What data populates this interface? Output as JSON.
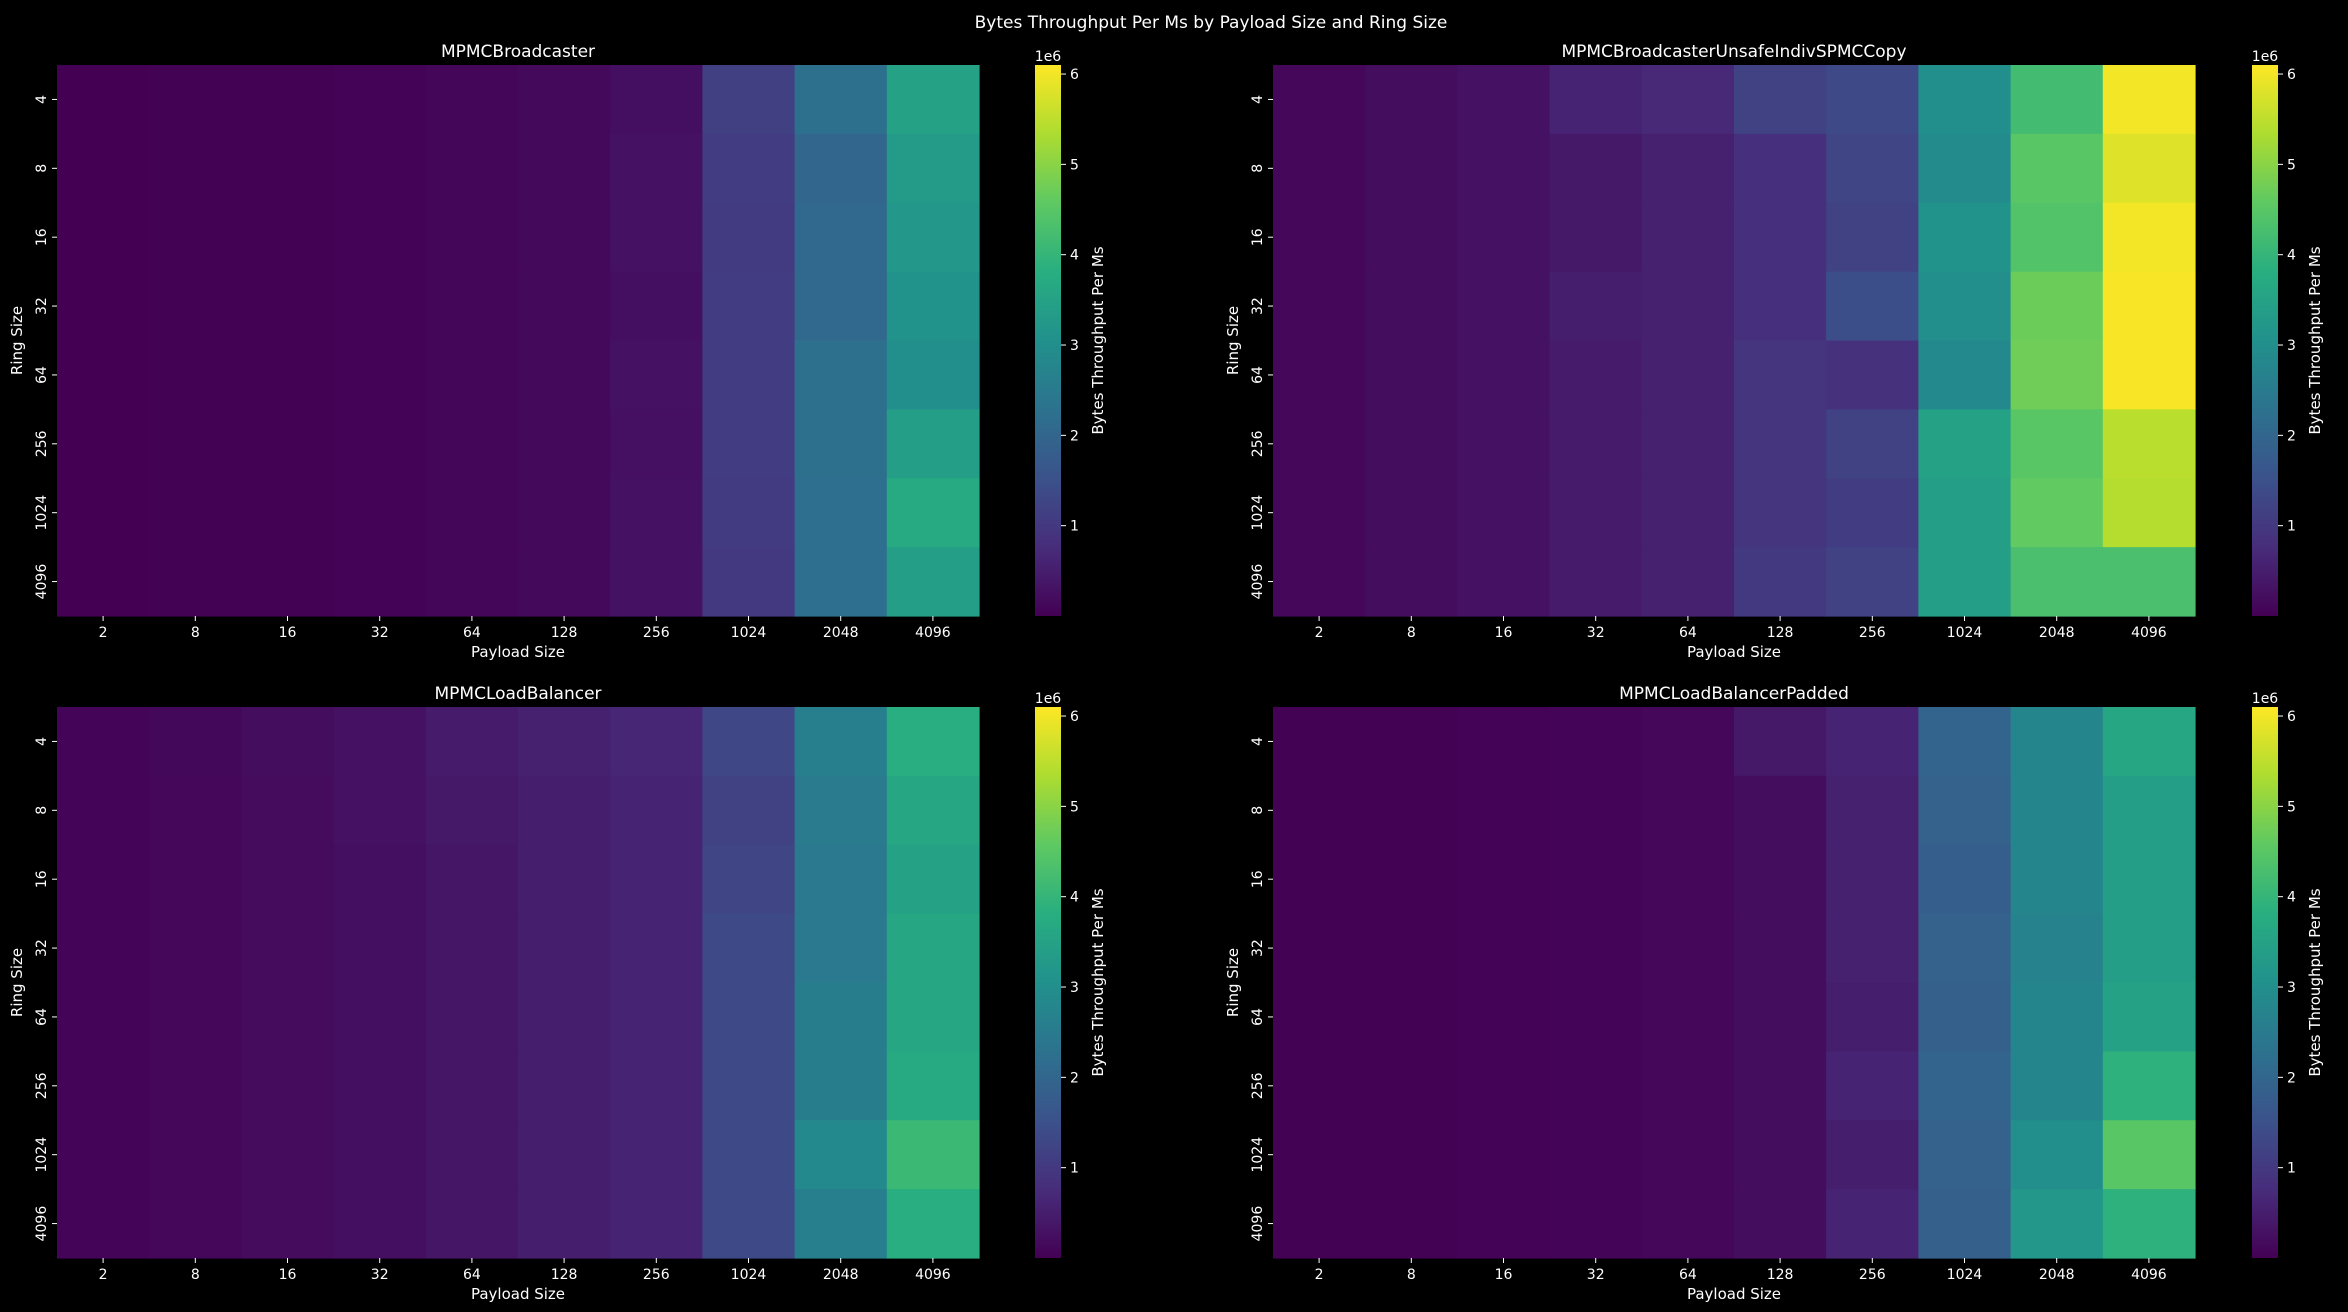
{
  "figure": {
    "suptitle": "Bytes Throughput Per Ms by Payload Size and Ring Size",
    "colormap": "viridis",
    "background": "#000000"
  },
  "chart_data": [
    {
      "type": "heatmap",
      "title": "MPMCBroadcaster",
      "xlabel": "Payload Size",
      "ylabel": "Ring Size",
      "x_categories": [
        "2",
        "8",
        "16",
        "32",
        "64",
        "128",
        "256",
        "1024",
        "2048",
        "4096"
      ],
      "y_categories": [
        "4",
        "8",
        "16",
        "32",
        "64",
        "256",
        "1024",
        "4096"
      ],
      "colorbar": {
        "label": "Bytes Throughput Per Ms",
        "offset_label": "1e6",
        "ticks": [
          "1",
          "2",
          "3",
          "4",
          "5",
          "6"
        ],
        "vmin": 0,
        "vmax": 6.1
      },
      "values": [
        [
          0.003,
          0.01,
          0.02,
          0.04,
          0.08,
          0.13,
          0.25,
          1.15,
          2.25,
          3.5
        ],
        [
          0.003,
          0.01,
          0.02,
          0.04,
          0.08,
          0.13,
          0.3,
          1.1,
          2.0,
          3.3
        ],
        [
          0.003,
          0.01,
          0.02,
          0.04,
          0.08,
          0.13,
          0.28,
          1.05,
          2.05,
          3.2
        ],
        [
          0.003,
          0.01,
          0.02,
          0.04,
          0.08,
          0.13,
          0.25,
          1.1,
          2.05,
          3.1
        ],
        [
          0.003,
          0.01,
          0.02,
          0.04,
          0.09,
          0.14,
          0.3,
          1.1,
          2.25,
          3.0
        ],
        [
          0.003,
          0.01,
          0.02,
          0.04,
          0.08,
          0.13,
          0.26,
          1.1,
          2.25,
          3.4
        ],
        [
          0.003,
          0.01,
          0.02,
          0.04,
          0.08,
          0.13,
          0.28,
          1.05,
          2.2,
          3.7
        ],
        [
          0.003,
          0.01,
          0.02,
          0.04,
          0.08,
          0.13,
          0.3,
          1.0,
          2.2,
          3.4
        ]
      ]
    },
    {
      "type": "heatmap",
      "title": "MPMCBroadcasterUnsafeIndivSPMCCopy",
      "xlabel": "Payload Size",
      "ylabel": "Ring Size",
      "x_categories": [
        "2",
        "8",
        "16",
        "32",
        "64",
        "128",
        "256",
        "1024",
        "2048",
        "4096"
      ],
      "y_categories": [
        "4",
        "8",
        "16",
        "32",
        "64",
        "256",
        "1024",
        "4096"
      ],
      "colorbar": {
        "label": "Bytes Throughput Per Ms",
        "offset_label": "1e6",
        "ticks": [
          "1",
          "2",
          "3",
          "4",
          "5",
          "6"
        ],
        "vmin": 0,
        "vmax": 6.1
      },
      "values": [
        [
          0.1,
          0.2,
          0.3,
          0.6,
          0.7,
          1.2,
          1.35,
          3.0,
          4.2,
          6.0
        ],
        [
          0.1,
          0.2,
          0.3,
          0.4,
          0.55,
          0.8,
          1.25,
          2.9,
          4.5,
          5.8
        ],
        [
          0.1,
          0.2,
          0.3,
          0.4,
          0.55,
          0.8,
          1.2,
          3.1,
          4.4,
          6.0
        ],
        [
          0.1,
          0.2,
          0.3,
          0.5,
          0.55,
          0.8,
          1.45,
          3.0,
          4.7,
          6.05
        ],
        [
          0.1,
          0.2,
          0.3,
          0.45,
          0.55,
          0.9,
          0.85,
          2.85,
          4.75,
          6.05
        ],
        [
          0.1,
          0.2,
          0.3,
          0.45,
          0.55,
          0.9,
          1.2,
          3.5,
          4.5,
          5.45
        ],
        [
          0.1,
          0.2,
          0.3,
          0.45,
          0.55,
          0.9,
          1.1,
          3.4,
          4.6,
          5.4
        ],
        [
          0.1,
          0.2,
          0.3,
          0.45,
          0.55,
          1.0,
          1.2,
          3.4,
          4.3,
          4.3
        ]
      ]
    },
    {
      "type": "heatmap",
      "title": "MPMCLoadBalancer",
      "xlabel": "Payload Size",
      "ylabel": "Ring Size",
      "x_categories": [
        "2",
        "8",
        "16",
        "32",
        "64",
        "128",
        "256",
        "1024",
        "2048",
        "4096"
      ],
      "y_categories": [
        "4",
        "8",
        "16",
        "32",
        "64",
        "256",
        "1024",
        "4096"
      ],
      "colorbar": {
        "label": "Bytes Throughput Per Ms",
        "offset_label": "1e6",
        "ticks": [
          "1",
          "2",
          "3",
          "4",
          "5",
          "6"
        ],
        "vmin": 0,
        "vmax": 6.1
      },
      "values": [
        [
          0.05,
          0.12,
          0.2,
          0.3,
          0.45,
          0.55,
          0.65,
          1.3,
          2.6,
          3.8
        ],
        [
          0.05,
          0.1,
          0.18,
          0.3,
          0.4,
          0.5,
          0.6,
          1.2,
          2.5,
          3.6
        ],
        [
          0.05,
          0.1,
          0.18,
          0.25,
          0.35,
          0.5,
          0.6,
          1.25,
          2.45,
          3.5
        ],
        [
          0.05,
          0.1,
          0.18,
          0.25,
          0.35,
          0.5,
          0.6,
          1.35,
          2.45,
          3.6
        ],
        [
          0.05,
          0.1,
          0.18,
          0.25,
          0.35,
          0.5,
          0.6,
          1.35,
          2.55,
          3.6
        ],
        [
          0.05,
          0.1,
          0.18,
          0.25,
          0.35,
          0.5,
          0.6,
          1.35,
          2.55,
          3.7
        ],
        [
          0.05,
          0.1,
          0.18,
          0.25,
          0.35,
          0.5,
          0.6,
          1.35,
          2.85,
          4.1
        ],
        [
          0.05,
          0.1,
          0.18,
          0.25,
          0.35,
          0.5,
          0.6,
          1.35,
          2.6,
          3.8
        ]
      ]
    },
    {
      "type": "heatmap",
      "title": "MPMCLoadBalancerPadded",
      "xlabel": "Payload Size",
      "ylabel": "Ring Size",
      "x_categories": [
        "2",
        "8",
        "16",
        "32",
        "64",
        "128",
        "256",
        "1024",
        "2048",
        "4096"
      ],
      "y_categories": [
        "4",
        "8",
        "16",
        "32",
        "64",
        "256",
        "1024",
        "4096"
      ],
      "colorbar": {
        "label": "Bytes Throughput Per Ms",
        "offset_label": "1e6",
        "ticks": [
          "1",
          "2",
          "3",
          "4",
          "5",
          "6"
        ],
        "vmin": 0,
        "vmax": 6.1
      },
      "values": [
        [
          0.01,
          0.02,
          0.03,
          0.05,
          0.1,
          0.4,
          0.6,
          1.95,
          2.75,
          3.6
        ],
        [
          0.01,
          0.02,
          0.03,
          0.05,
          0.1,
          0.2,
          0.55,
          1.9,
          2.75,
          3.4
        ],
        [
          0.01,
          0.02,
          0.03,
          0.05,
          0.1,
          0.2,
          0.55,
          1.8,
          2.75,
          3.4
        ],
        [
          0.01,
          0.02,
          0.03,
          0.05,
          0.1,
          0.2,
          0.55,
          1.9,
          2.7,
          3.4
        ],
        [
          0.01,
          0.02,
          0.03,
          0.05,
          0.1,
          0.2,
          0.5,
          1.85,
          2.75,
          3.5
        ],
        [
          0.01,
          0.02,
          0.03,
          0.05,
          0.1,
          0.2,
          0.6,
          1.95,
          2.75,
          3.9
        ],
        [
          0.01,
          0.02,
          0.03,
          0.05,
          0.1,
          0.2,
          0.5,
          1.9,
          3.0,
          4.5
        ],
        [
          0.01,
          0.02,
          0.03,
          0.05,
          0.1,
          0.2,
          0.6,
          1.85,
          3.2,
          3.9
        ]
      ]
    }
  ]
}
